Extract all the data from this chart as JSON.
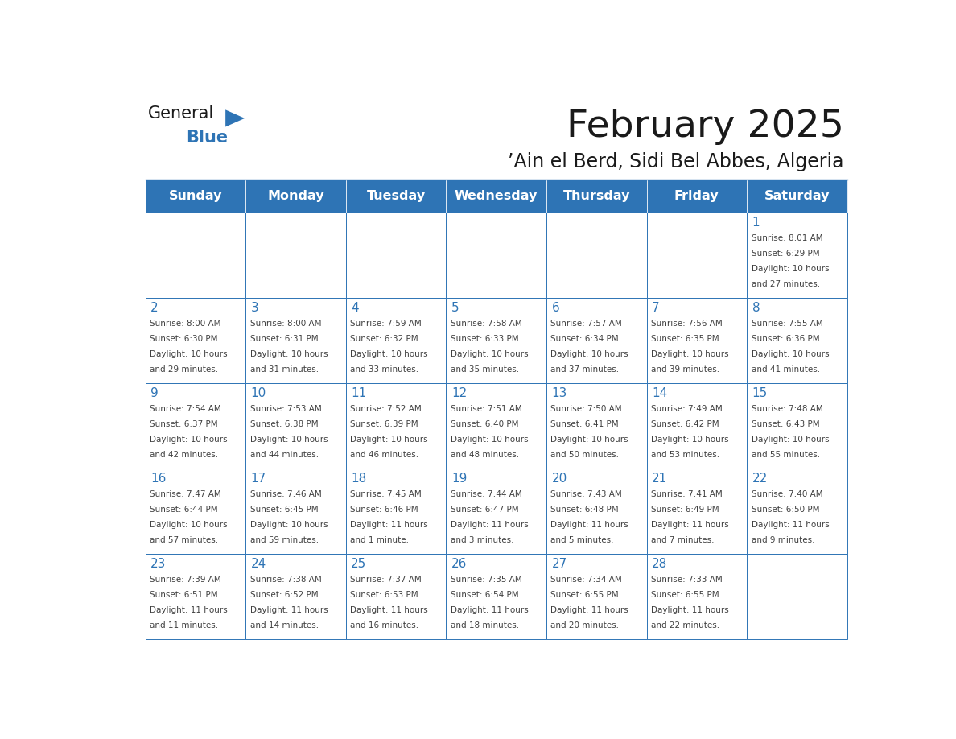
{
  "title": "February 2025",
  "subtitle": "’Ain el Berd, Sidi Bel Abbes, Algeria",
  "days_of_week": [
    "Sunday",
    "Monday",
    "Tuesday",
    "Wednesday",
    "Thursday",
    "Friday",
    "Saturday"
  ],
  "header_bg": "#2E74B5",
  "header_text": "#FFFFFF",
  "cell_bg_white": "#FFFFFF",
  "line_color": "#2E74B5",
  "text_color": "#404040",
  "number_color": "#2E74B5",
  "title_color": "#1a1a1a",
  "logo_general_color": "#1a1a1a",
  "logo_blue_color": "#2E74B5",
  "calendar_data": [
    [
      null,
      null,
      null,
      null,
      null,
      null,
      {
        "day": 1,
        "sunrise": "8:01 AM",
        "sunset": "6:29 PM",
        "daylight": "10 hours and 27 minutes."
      }
    ],
    [
      {
        "day": 2,
        "sunrise": "8:00 AM",
        "sunset": "6:30 PM",
        "daylight": "10 hours and 29 minutes."
      },
      {
        "day": 3,
        "sunrise": "8:00 AM",
        "sunset": "6:31 PM",
        "daylight": "10 hours and 31 minutes."
      },
      {
        "day": 4,
        "sunrise": "7:59 AM",
        "sunset": "6:32 PM",
        "daylight": "10 hours and 33 minutes."
      },
      {
        "day": 5,
        "sunrise": "7:58 AM",
        "sunset": "6:33 PM",
        "daylight": "10 hours and 35 minutes."
      },
      {
        "day": 6,
        "sunrise": "7:57 AM",
        "sunset": "6:34 PM",
        "daylight": "10 hours and 37 minutes."
      },
      {
        "day": 7,
        "sunrise": "7:56 AM",
        "sunset": "6:35 PM",
        "daylight": "10 hours and 39 minutes."
      },
      {
        "day": 8,
        "sunrise": "7:55 AM",
        "sunset": "6:36 PM",
        "daylight": "10 hours and 41 minutes."
      }
    ],
    [
      {
        "day": 9,
        "sunrise": "7:54 AM",
        "sunset": "6:37 PM",
        "daylight": "10 hours and 42 minutes."
      },
      {
        "day": 10,
        "sunrise": "7:53 AM",
        "sunset": "6:38 PM",
        "daylight": "10 hours and 44 minutes."
      },
      {
        "day": 11,
        "sunrise": "7:52 AM",
        "sunset": "6:39 PM",
        "daylight": "10 hours and 46 minutes."
      },
      {
        "day": 12,
        "sunrise": "7:51 AM",
        "sunset": "6:40 PM",
        "daylight": "10 hours and 48 minutes."
      },
      {
        "day": 13,
        "sunrise": "7:50 AM",
        "sunset": "6:41 PM",
        "daylight": "10 hours and 50 minutes."
      },
      {
        "day": 14,
        "sunrise": "7:49 AM",
        "sunset": "6:42 PM",
        "daylight": "10 hours and 53 minutes."
      },
      {
        "day": 15,
        "sunrise": "7:48 AM",
        "sunset": "6:43 PM",
        "daylight": "10 hours and 55 minutes."
      }
    ],
    [
      {
        "day": 16,
        "sunrise": "7:47 AM",
        "sunset": "6:44 PM",
        "daylight": "10 hours and 57 minutes."
      },
      {
        "day": 17,
        "sunrise": "7:46 AM",
        "sunset": "6:45 PM",
        "daylight": "10 hours and 59 minutes."
      },
      {
        "day": 18,
        "sunrise": "7:45 AM",
        "sunset": "6:46 PM",
        "daylight": "11 hours and 1 minute."
      },
      {
        "day": 19,
        "sunrise": "7:44 AM",
        "sunset": "6:47 PM",
        "daylight": "11 hours and 3 minutes."
      },
      {
        "day": 20,
        "sunrise": "7:43 AM",
        "sunset": "6:48 PM",
        "daylight": "11 hours and 5 minutes."
      },
      {
        "day": 21,
        "sunrise": "7:41 AM",
        "sunset": "6:49 PM",
        "daylight": "11 hours and 7 minutes."
      },
      {
        "day": 22,
        "sunrise": "7:40 AM",
        "sunset": "6:50 PM",
        "daylight": "11 hours and 9 minutes."
      }
    ],
    [
      {
        "day": 23,
        "sunrise": "7:39 AM",
        "sunset": "6:51 PM",
        "daylight": "11 hours and 11 minutes."
      },
      {
        "day": 24,
        "sunrise": "7:38 AM",
        "sunset": "6:52 PM",
        "daylight": "11 hours and 14 minutes."
      },
      {
        "day": 25,
        "sunrise": "7:37 AM",
        "sunset": "6:53 PM",
        "daylight": "11 hours and 16 minutes."
      },
      {
        "day": 26,
        "sunrise": "7:35 AM",
        "sunset": "6:54 PM",
        "daylight": "11 hours and 18 minutes."
      },
      {
        "day": 27,
        "sunrise": "7:34 AM",
        "sunset": "6:55 PM",
        "daylight": "11 hours and 20 minutes."
      },
      {
        "day": 28,
        "sunrise": "7:33 AM",
        "sunset": "6:55 PM",
        "daylight": "11 hours and 22 minutes."
      },
      null
    ]
  ]
}
